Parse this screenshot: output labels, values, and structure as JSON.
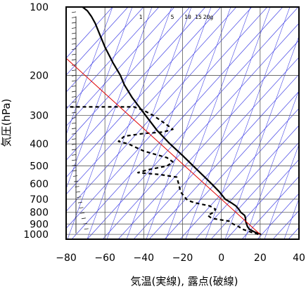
{
  "chart_data": {
    "type": "line",
    "title": "",
    "xlabel": "気温(実線), 露点(破線)",
    "ylabel": "気圧(hPa)",
    "xlim": [
      -80,
      40
    ],
    "ylim": [
      1050,
      100
    ],
    "y_scale": "log",
    "x_ticks": [
      -80,
      -60,
      -40,
      -20,
      0,
      20,
      40
    ],
    "y_ticks": [
      100,
      200,
      300,
      400,
      500,
      600,
      700,
      800,
      900,
      1000
    ],
    "mixing_ratio_labels": [
      "1",
      "5",
      "10",
      "15",
      "20g"
    ],
    "grid": true,
    "series": [
      {
        "role": "temperature",
        "style": "solid",
        "color": "#000000",
        "points": [
          [
            20.5,
            1000
          ],
          [
            17,
            975
          ],
          [
            14.5,
            950
          ],
          [
            13.5,
            925
          ],
          [
            13,
            900
          ],
          [
            12.5,
            875
          ],
          [
            12.5,
            850
          ],
          [
            12,
            825
          ],
          [
            10,
            800
          ],
          [
            9,
            775
          ],
          [
            7.5,
            750
          ],
          [
            5,
            725
          ],
          [
            2,
            700
          ],
          [
            -1,
            650
          ],
          [
            -5,
            600
          ],
          [
            -9.5,
            550
          ],
          [
            -14.5,
            500
          ],
          [
            -20,
            450
          ],
          [
            -26.5,
            400
          ],
          [
            -33,
            350
          ],
          [
            -39,
            300
          ],
          [
            -46,
            250
          ],
          [
            -50,
            220
          ],
          [
            -52,
            200
          ],
          [
            -56,
            175
          ],
          [
            -60,
            150
          ],
          [
            -63,
            130
          ],
          [
            -65,
            118
          ],
          [
            -67,
            110
          ],
          [
            -69,
            104
          ],
          [
            -71.5,
            100
          ]
        ]
      },
      {
        "role": "dewpoint",
        "style": "dashed",
        "color": "#000000",
        "points": [
          [
            19,
            1000
          ],
          [
            15,
            975
          ],
          [
            11,
            950
          ],
          [
            9,
            925
          ],
          [
            6,
            900
          ],
          [
            4,
            875
          ],
          [
            -5,
            850
          ],
          [
            -7,
            825
          ],
          [
            -4,
            800
          ],
          [
            -3,
            775
          ],
          [
            -6,
            750
          ],
          [
            -14,
            725
          ],
          [
            -17,
            710
          ],
          [
            -18,
            700
          ],
          [
            -21,
            650
          ],
          [
            -22,
            600
          ],
          [
            -23,
            560
          ],
          [
            -32,
            545
          ],
          [
            -43,
            535
          ],
          [
            -38,
            520
          ],
          [
            -28,
            500
          ],
          [
            -25,
            480
          ],
          [
            -28,
            460
          ],
          [
            -40,
            430
          ],
          [
            -48,
            400
          ],
          [
            -53,
            390
          ],
          [
            -50,
            370
          ],
          [
            -40,
            360
          ],
          [
            -30,
            355
          ],
          [
            -25,
            345
          ],
          [
            -28,
            330
          ],
          [
            -35,
            300
          ],
          [
            -40,
            285
          ],
          [
            -45,
            275
          ],
          [
            -80,
            275
          ]
        ]
      },
      {
        "role": "parcel",
        "style": "solid",
        "color": "#e00000",
        "points": [
          [
            20,
            1000
          ],
          [
            -81,
            165
          ]
        ]
      }
    ]
  },
  "colors": {
    "axes": "#000000",
    "grid": "#5a5a5a",
    "adiabats": "#4646e6",
    "parcel": "#e00000"
  }
}
